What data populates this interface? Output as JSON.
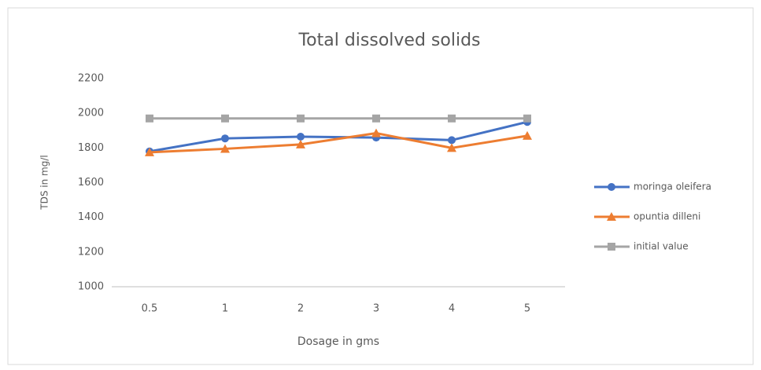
{
  "chart_data": {
    "type": "line",
    "title": "Total dissolved solids",
    "x_label": "Dosage in gms",
    "y_label": "TDS  in mg/l",
    "categories": [
      "0.5",
      "1",
      "2",
      "3",
      "4",
      "5"
    ],
    "series": [
      {
        "name": "moringa oleifera",
        "color": "#4472c4",
        "marker": "circle",
        "values": [
          1780,
          1855,
          1865,
          1860,
          1845,
          1950
        ]
      },
      {
        "name": "opuntia  dilleni",
        "color": "#ed7d31",
        "marker": "triangle",
        "values": [
          1775,
          1795,
          1820,
          1885,
          1800,
          1870
        ]
      },
      {
        "name": "initial value",
        "color": "#a5a5a5",
        "marker": "square",
        "values": [
          1970,
          1970,
          1970,
          1970,
          1970,
          1970
        ]
      }
    ],
    "ylim": [
      1000,
      2200
    ],
    "yticks": [
      1000,
      1200,
      1400,
      1600,
      1800,
      2000,
      2200
    ],
    "grid": false,
    "legend": "right"
  }
}
